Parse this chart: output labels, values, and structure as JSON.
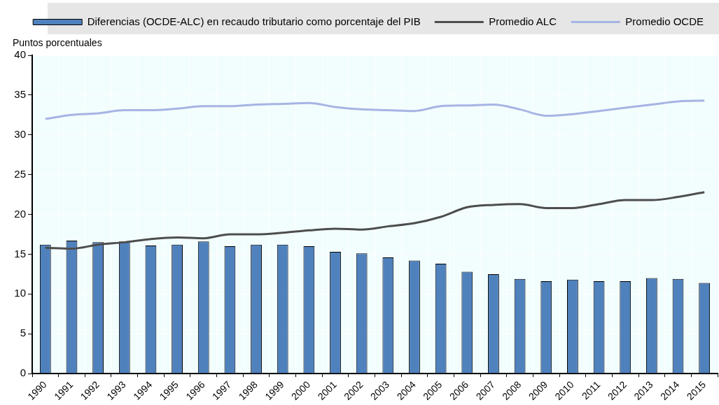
{
  "chart_data": {
    "type": "bar",
    "ylabel": "Puntos porcentuales",
    "categories": [
      "1990",
      "1991",
      "1992",
      "1993",
      "1994",
      "1995",
      "1996",
      "1997",
      "1998",
      "1999",
      "2000",
      "2001",
      "2002",
      "2003",
      "2004",
      "2005",
      "2006",
      "2007",
      "2008",
      "2009",
      "2010",
      "2011",
      "2012",
      "2013",
      "2014",
      "2015"
    ],
    "series": [
      {
        "name": "Diferencias (OCDE-ALC) en recaudo tributario como porcentaje del PIB",
        "color": "#4f81bd",
        "values": [
          16.2,
          16.7,
          16.5,
          16.6,
          16.1,
          16.2,
          16.6,
          16.0,
          16.2,
          16.2,
          16.0,
          15.3,
          15.1,
          14.6,
          14.2,
          13.8,
          12.8,
          12.5,
          11.9,
          11.6,
          11.8,
          11.6,
          11.6,
          12.0,
          11.9,
          11.4
        ]
      },
      {
        "name": "Promedio ALC",
        "type": "line",
        "color": "#4d4d4d",
        "values": [
          15.8,
          15.7,
          16.2,
          16.5,
          16.9,
          17.1,
          17.0,
          17.5,
          17.5,
          17.7,
          18.0,
          18.2,
          18.1,
          18.5,
          18.9,
          19.7,
          20.9,
          21.2,
          21.3,
          20.8,
          20.8,
          21.3,
          21.8,
          21.8,
          22.2,
          22.8
        ]
      },
      {
        "name": "Promedio OCDE",
        "type": "line",
        "color": "#a6b4e4",
        "values": [
          32.0,
          32.5,
          32.7,
          33.1,
          33.1,
          33.3,
          33.6,
          33.6,
          33.8,
          33.9,
          34.0,
          33.5,
          33.2,
          33.1,
          33.0,
          33.6,
          33.7,
          33.8,
          33.2,
          32.4,
          32.6,
          33.0,
          33.4,
          33.8,
          34.2,
          34.3
        ]
      }
    ],
    "ylim": [
      0,
      40
    ],
    "yticks": [
      0,
      5,
      10,
      15,
      20,
      25,
      30,
      35,
      40
    ],
    "grid": true,
    "legend": "top",
    "marker": "none",
    "line_style": "solid"
  }
}
